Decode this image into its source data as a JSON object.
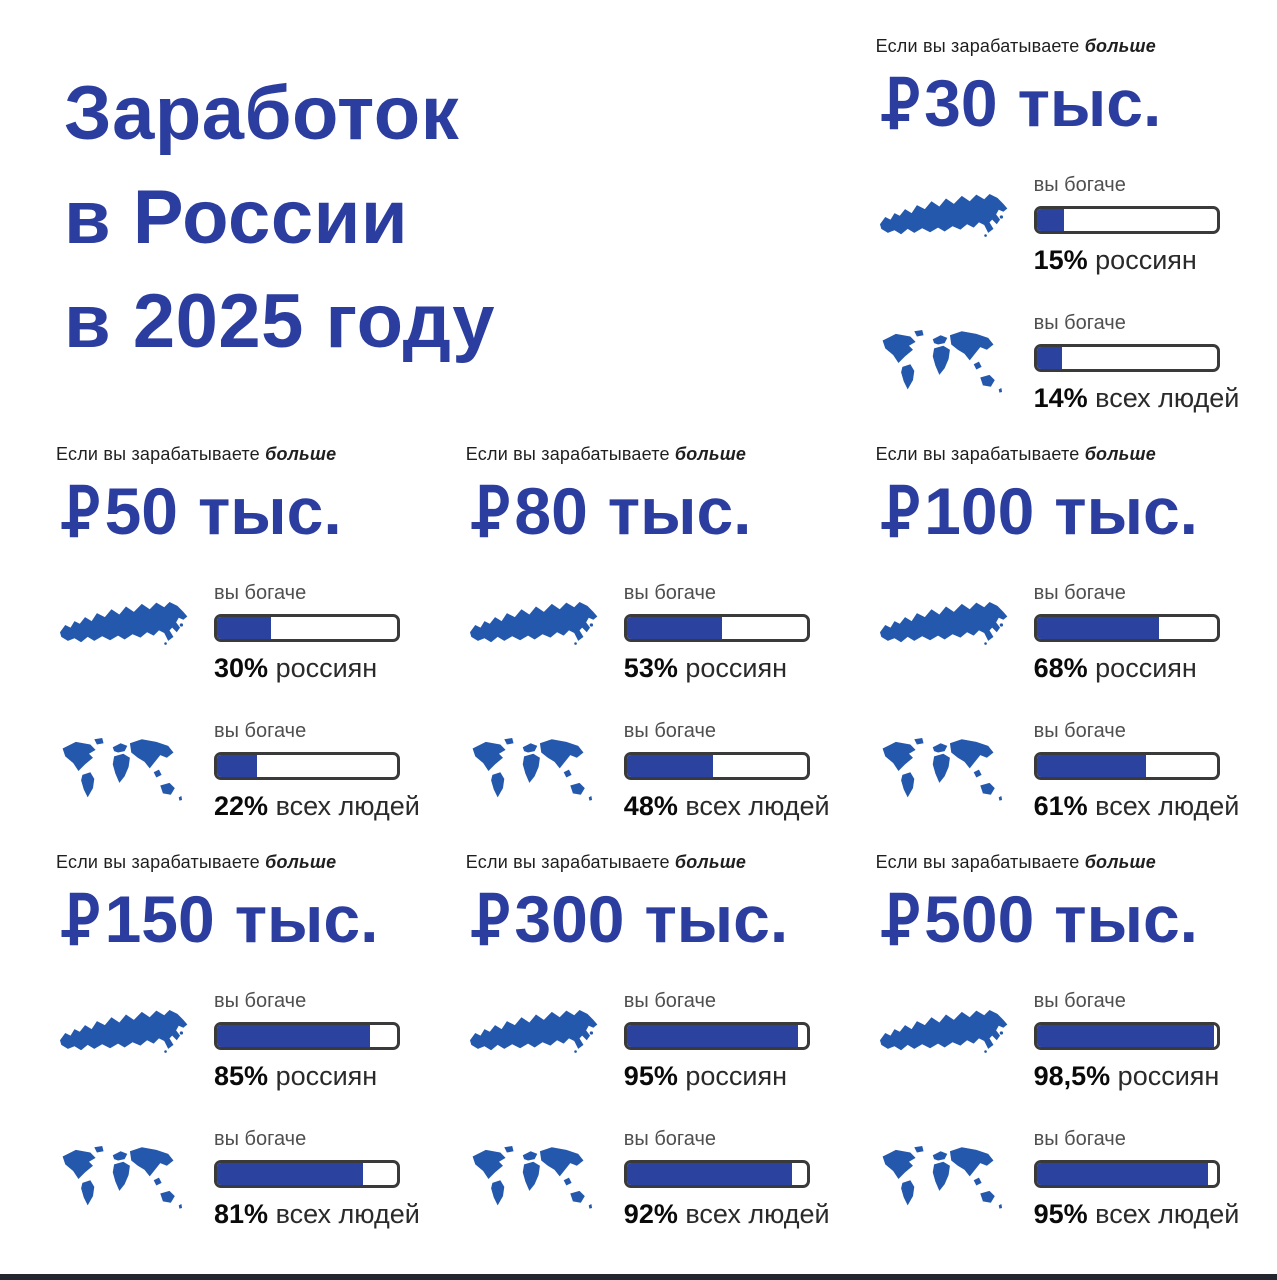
{
  "page": {
    "title_lines": [
      "Заработок",
      "в России",
      "в 2025 году"
    ]
  },
  "shared": {
    "condition_prefix": "Если вы зарабатываете",
    "condition_bold": "больше",
    "richer_label": "вы богаче",
    "currency_symbol": "₽"
  },
  "colors": {
    "title_blue": "#2b3d9e",
    "bar_fill_blue": "#2c429f",
    "map_blue": "#2458ad",
    "bar_border": "#3a3a3a",
    "footer_bar": "#23262e"
  },
  "cards": [
    {
      "amount": "30",
      "suffix": "тыс.",
      "russia": {
        "value": 15,
        "label": "15%",
        "unit": "россиян"
      },
      "world": {
        "value": 14,
        "label": "14%",
        "unit": "всех людей"
      }
    },
    {
      "amount": "50",
      "suffix": "тыс.",
      "russia": {
        "value": 30,
        "label": "30%",
        "unit": "россиян"
      },
      "world": {
        "value": 22,
        "label": "22%",
        "unit": "всех людей"
      }
    },
    {
      "amount": "80",
      "suffix": "тыс.",
      "russia": {
        "value": 53,
        "label": "53%",
        "unit": "россиян"
      },
      "world": {
        "value": 48,
        "label": "48%",
        "unit": "всех людей"
      }
    },
    {
      "amount": "100",
      "suffix": "тыс.",
      "russia": {
        "value": 68,
        "label": "68%",
        "unit": "россиян"
      },
      "world": {
        "value": 61,
        "label": "61%",
        "unit": "всех людей"
      }
    },
    {
      "amount": "150",
      "suffix": "тыс.",
      "russia": {
        "value": 85,
        "label": "85%",
        "unit": "россиян"
      },
      "world": {
        "value": 81,
        "label": "81%",
        "unit": "всех людей"
      }
    },
    {
      "amount": "300",
      "suffix": "тыс.",
      "russia": {
        "value": 95,
        "label": "95%",
        "unit": "россиян"
      },
      "world": {
        "value": 92,
        "label": "92%",
        "unit": "всех людей"
      }
    },
    {
      "amount": "500",
      "suffix": "тыс.",
      "russia": {
        "value": 98.5,
        "label": "98,5%",
        "unit": "россиян"
      },
      "world": {
        "value": 95,
        "label": "95%",
        "unit": "всех людей"
      }
    }
  ],
  "chart_data": {
    "type": "bar",
    "title": "Заработок в России в 2025 году",
    "categories": [
      "₽30 тыс.",
      "₽50 тыс.",
      "₽80 тыс.",
      "₽100 тыс.",
      "₽150 тыс.",
      "₽300 тыс.",
      "₽500 тыс."
    ],
    "series": [
      {
        "name": "вы богаче — % россиян",
        "values": [
          15,
          30,
          53,
          68,
          85,
          95,
          98.5
        ]
      },
      {
        "name": "вы богаче — % всех людей",
        "values": [
          14,
          22,
          48,
          61,
          81,
          92,
          95
        ]
      }
    ],
    "xlabel": "",
    "ylabel": "",
    "value_range": [
      0,
      100
    ],
    "unit": "%",
    "legend_position": "inline-per-panel",
    "grid": false
  }
}
